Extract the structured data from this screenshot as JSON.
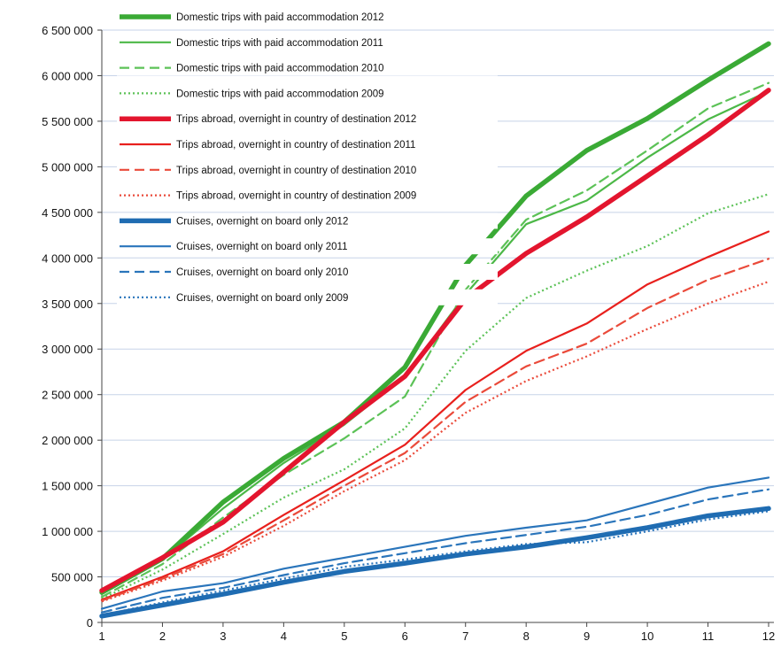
{
  "chart_data": {
    "type": "line",
    "title": "",
    "xlabel": "",
    "ylabel": "",
    "x": [
      1,
      2,
      3,
      4,
      5,
      6,
      7,
      8,
      9,
      10,
      11,
      12
    ],
    "x_tick_labels": [
      "1",
      "2",
      "3",
      "4",
      "5",
      "6",
      "7",
      "8",
      "9",
      "10",
      "11",
      "12"
    ],
    "ylim": [
      0,
      6500000
    ],
    "y_ticks": [
      0,
      500000,
      1000000,
      1500000,
      2000000,
      2500000,
      3000000,
      3500000,
      4000000,
      4500000,
      5000000,
      5500000,
      6000000,
      6500000
    ],
    "y_tick_labels": [
      "0",
      "500 000",
      "1 000 000",
      "1 500 000",
      "2 000 000",
      "2 500 000",
      "3 000 000",
      "3 500 000",
      "4 000 000",
      "4 500 000",
      "5 000 000",
      "5 500 000",
      "6 000 000",
      "6 500 000"
    ],
    "grid": "horizontal",
    "legend_position": "top-left",
    "series": [
      {
        "name": "Domestic trips with paid accommodation 2012",
        "color": "#3aaa35",
        "style": "solid",
        "weight": "thick",
        "values": [
          330000,
          700000,
          1320000,
          1800000,
          2200000,
          2800000,
          3920000,
          4680000,
          5180000,
          5530000,
          5950000,
          6350000
        ]
      },
      {
        "name": "Domestic trips with paid accommodation 2011",
        "color": "#4cb847",
        "style": "solid",
        "weight": "normal",
        "values": [
          310000,
          690000,
          1250000,
          1750000,
          2170000,
          2700000,
          3600000,
          4370000,
          4630000,
          5100000,
          5520000,
          5830000
        ]
      },
      {
        "name": "Domestic trips with paid accommodation 2010",
        "color": "#5cc257",
        "style": "dashed",
        "weight": "normal",
        "values": [
          280000,
          640000,
          1150000,
          1620000,
          2020000,
          2480000,
          3650000,
          4420000,
          4740000,
          5180000,
          5640000,
          5920000
        ]
      },
      {
        "name": "Domestic trips with paid accommodation 2009",
        "color": "#5cc257",
        "style": "dotted",
        "weight": "normal",
        "values": [
          260000,
          580000,
          970000,
          1370000,
          1680000,
          2130000,
          2980000,
          3560000,
          3860000,
          4130000,
          4490000,
          4700000
        ]
      },
      {
        "name": "Trips abroad,  overnight in country of destination 2012",
        "color": "#e3152e",
        "style": "solid",
        "weight": "thick",
        "values": [
          350000,
          710000,
          1100000,
          1650000,
          2200000,
          2700000,
          3550000,
          4050000,
          4450000,
          4900000,
          5350000,
          5840000
        ]
      },
      {
        "name": "Trips abroad,  overnight in country of destination 2011",
        "color": "#e8201d",
        "style": "solid",
        "weight": "normal",
        "values": [
          250000,
          500000,
          780000,
          1180000,
          1560000,
          1950000,
          2550000,
          2980000,
          3280000,
          3710000,
          4010000,
          4290000
        ]
      },
      {
        "name": "Trips abroad,  overnight in country of destination 2010",
        "color": "#ea4a3a",
        "style": "dashed",
        "weight": "normal",
        "values": [
          240000,
          480000,
          750000,
          1120000,
          1500000,
          1860000,
          2420000,
          2810000,
          3060000,
          3450000,
          3760000,
          3990000
        ]
      },
      {
        "name": "Trips abroad,  overnight in country of destination 2009",
        "color": "#ea4a3a",
        "style": "dotted",
        "weight": "normal",
        "values": [
          230000,
          460000,
          720000,
          1060000,
          1440000,
          1780000,
          2300000,
          2650000,
          2920000,
          3220000,
          3500000,
          3740000
        ]
      },
      {
        "name": "Cruises, overnight on board only 2012",
        "color": "#1f6cb2",
        "style": "solid",
        "weight": "thick",
        "values": [
          70000,
          190000,
          310000,
          440000,
          560000,
          650000,
          750000,
          830000,
          930000,
          1040000,
          1170000,
          1250000
        ]
      },
      {
        "name": "Cruises, overnight on board only 2011",
        "color": "#2a75bb",
        "style": "solid",
        "weight": "normal",
        "values": [
          150000,
          340000,
          430000,
          590000,
          710000,
          830000,
          950000,
          1040000,
          1120000,
          1300000,
          1480000,
          1590000
        ]
      },
      {
        "name": "Cruises, overnight on board only 2010",
        "color": "#2a75bb",
        "style": "dashed",
        "weight": "normal",
        "values": [
          110000,
          270000,
          380000,
          520000,
          650000,
          760000,
          870000,
          960000,
          1050000,
          1180000,
          1350000,
          1460000
        ]
      },
      {
        "name": "Cruises, overnight on board only 2009",
        "color": "#2a75bb",
        "style": "dotted",
        "weight": "normal",
        "values": [
          80000,
          220000,
          350000,
          480000,
          610000,
          690000,
          780000,
          860000,
          880000,
          1000000,
          1130000,
          1220000
        ]
      }
    ]
  }
}
